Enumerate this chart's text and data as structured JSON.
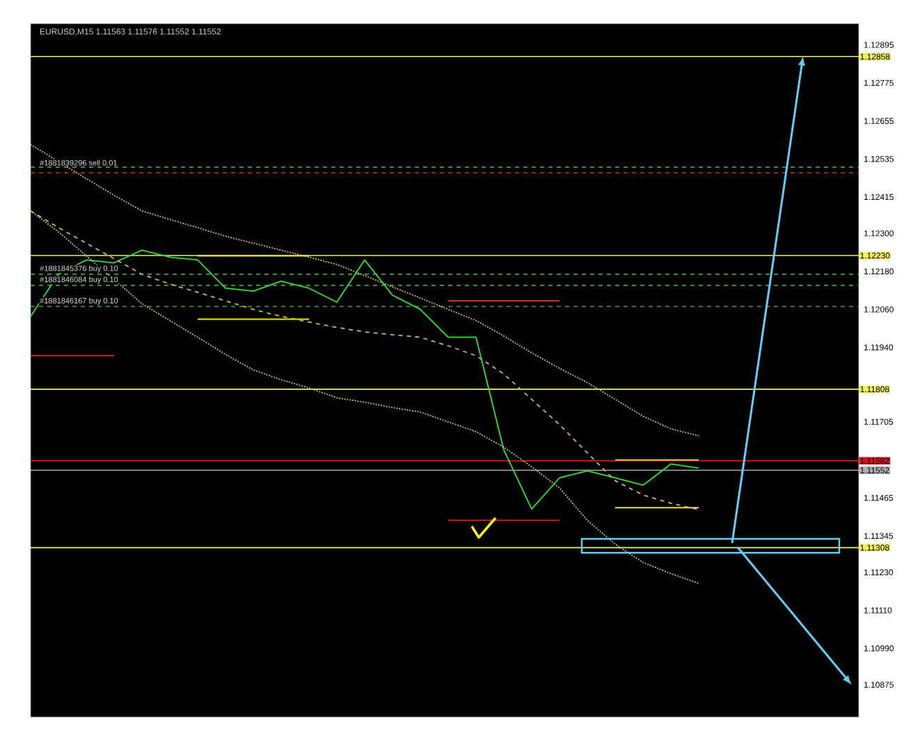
{
  "chart_data": {
    "type": "line",
    "title": "EURUSD,M15  1.11563 1.11576 1.11552 1.11552",
    "categories": [
      null,
      null,
      null,
      null,
      null,
      null,
      null,
      null,
      null,
      null,
      null,
      null,
      null,
      null,
      null,
      null,
      null,
      null,
      null,
      null,
      null,
      null,
      null,
      null,
      null,
      null,
      null,
      null,
      null,
      null
    ],
    "ylim": [
      1.10773,
      1.12962
    ],
    "yticks": [
      1.12895,
      1.12775,
      1.12655,
      1.12535,
      1.12415,
      {
        "value": 1.123,
        "label": "1.12300"
      },
      {
        "value": 1.1218,
        "label": "1.12180"
      },
      {
        "value": 1.1206,
        "label": "1.12060"
      },
      {
        "value": 1.1194,
        "label": "1.11940"
      },
      1.11705,
      1.11465,
      1.11345,
      {
        "value": 1.1123,
        "label": "1.11230"
      },
      {
        "value": 1.1111,
        "label": "1.11110"
      },
      {
        "value": 1.1099,
        "label": "1.10990"
      },
      1.10875
    ],
    "tick_labels": "y",
    "series": [
      {
        "color": "#33e033",
        "line_style": "solid",
        "values": [
          1.12038,
          1.12171,
          1.12216,
          1.12207,
          1.12247,
          1.12225,
          1.12216,
          1.12127,
          1.12118,
          1.12149,
          1.12127,
          1.12083,
          1.12216,
          1.12105,
          1.1206,
          1.11972,
          1.11972,
          1.11616,
          1.1143,
          1.11528,
          1.1155,
          1.11528,
          1.11505,
          1.11572,
          1.11559,
          null,
          null,
          null,
          null,
          null
        ]
      },
      {
        "color": "#d8d070",
        "line_style": "dotted",
        "values": [
          1.1258,
          1.12527,
          1.12473,
          1.1242,
          1.12371,
          1.12344,
          1.12318,
          1.12291,
          1.12269,
          1.12247,
          1.12225,
          1.12202,
          1.12167,
          1.12131,
          1.12096,
          1.1206,
          1.12025,
          1.11976,
          1.11923,
          1.11874,
          1.11829,
          1.11776,
          1.11723,
          1.11683,
          1.11661,
          null,
          null,
          null,
          null,
          null
        ]
      },
      {
        "color": "#d8d070",
        "line_style": "dotted",
        "values": [
          1.12371,
          1.12305,
          1.12229,
          1.12154,
          1.12078,
          1.12025,
          1.11972,
          1.11918,
          1.11869,
          1.11838,
          1.11812,
          1.11781,
          1.11767,
          1.1175,
          1.11736,
          1.11705,
          1.11674,
          1.11625,
          1.11563,
          1.11496,
          1.11394,
          1.11319,
          1.11261,
          1.11226,
          1.11195,
          null,
          null,
          null,
          null,
          null
        ]
      },
      {
        "color": "#c8b860",
        "line_style": "dashed",
        "values": [
          1.12371,
          1.12318,
          1.12269,
          1.1222,
          1.12171,
          1.1214,
          1.12114,
          1.12087,
          1.1206,
          1.12038,
          1.1202,
          1.12003,
          1.11989,
          1.1198,
          1.11972,
          1.11945,
          1.11914,
          1.11856,
          1.11776,
          1.11696,
          1.11607,
          1.11519,
          1.11474,
          1.11448,
          1.11428,
          null,
          null,
          null,
          null,
          null
        ]
      },
      {
        "color": "#e02020",
        "line_style": "solid",
        "values": [
          1.11914,
          1.11914,
          1.11914,
          1.11914,
          null,
          null,
          null,
          null,
          null,
          null,
          null,
          null,
          null,
          null,
          null,
          null,
          null,
          null,
          null,
          null,
          null,
          null,
          null,
          null,
          null,
          null,
          null,
          null,
          null,
          null
        ]
      },
      {
        "color": "#e04020",
        "line_style": "solid",
        "values": [
          null,
          null,
          null,
          null,
          null,
          null,
          null,
          null,
          null,
          null,
          null,
          null,
          null,
          null,
          null,
          1.12087,
          1.12087,
          1.12087,
          1.12087,
          1.12087,
          null,
          null,
          null,
          null,
          null,
          null,
          null,
          null,
          null,
          null
        ]
      },
      {
        "color": "#e02020",
        "line_style": "solid",
        "values": [
          null,
          null,
          null,
          null,
          null,
          null,
          null,
          null,
          null,
          null,
          null,
          null,
          null,
          null,
          null,
          1.11394,
          1.11394,
          1.11394,
          1.11394,
          1.11394,
          null,
          null,
          null,
          null,
          null,
          null,
          null,
          null,
          null,
          null
        ]
      },
      {
        "color": "#f0e020",
        "line_style": "solid",
        "values": [
          null,
          null,
          null,
          null,
          null,
          null,
          1.12229,
          1.12229,
          1.12229,
          1.12229,
          1.12229,
          null,
          null,
          null,
          null,
          null,
          null,
          null,
          null,
          null,
          null,
          null,
          null,
          null,
          null,
          null,
          null,
          null,
          null,
          null
        ]
      },
      {
        "color": "#f0e020",
        "line_style": "solid",
        "values": [
          null,
          null,
          null,
          null,
          null,
          null,
          1.12029,
          1.12029,
          1.12029,
          1.12029,
          1.12029,
          null,
          null,
          null,
          null,
          null,
          null,
          null,
          null,
          null,
          null,
          null,
          null,
          null,
          null,
          null,
          null,
          null,
          null,
          null
        ]
      },
      {
        "color": "#f0e020",
        "line_style": "solid",
        "values": [
          null,
          null,
          null,
          null,
          null,
          null,
          null,
          null,
          null,
          null,
          null,
          null,
          null,
          null,
          null,
          null,
          null,
          null,
          null,
          null,
          null,
          1.11585,
          1.11585,
          1.11585,
          1.11585,
          null,
          null,
          null,
          null,
          null
        ]
      },
      {
        "color": "#f0e020",
        "line_style": "solid",
        "values": [
          null,
          null,
          null,
          null,
          null,
          null,
          null,
          null,
          null,
          null,
          null,
          null,
          null,
          null,
          null,
          null,
          null,
          null,
          null,
          null,
          null,
          1.11434,
          1.11434,
          1.11434,
          1.11434,
          null,
          null,
          null,
          null,
          null
        ]
      }
    ],
    "ref_lines": [
      {
        "axis": "y",
        "value": 1.12858,
        "label": "1.12858",
        "color": "#f0f060",
        "line_style": "solid"
      },
      {
        "axis": "y",
        "value": 1.1223,
        "label": "1.12230",
        "color": "#f0f060",
        "line_style": "solid"
      },
      {
        "axis": "y",
        "value": 1.11808,
        "label": "1.11808",
        "color": "#f0f060",
        "line_style": "solid"
      },
      {
        "axis": "y",
        "value": 1.11582,
        "label": "1.11582",
        "color": "#d01818",
        "line_style": "solid"
      },
      {
        "axis": "y",
        "value": 1.11552,
        "label": "1.11552",
        "color": "#b0b0b0",
        "line_style": "solid"
      },
      {
        "axis": "y",
        "value": 1.11308,
        "label": "1.11308",
        "color": "#f0f060",
        "line_style": "solid"
      },
      {
        "axis": "y",
        "value": 1.12509,
        "color": "#40a040",
        "line_style": "dashed"
      },
      {
        "axis": "y",
        "value": 1.12491,
        "color": "#c03030",
        "line_style": "dashed"
      },
      {
        "axis": "y",
        "value": 1.12171,
        "color": "#40a040",
        "line_style": "dashed"
      },
      {
        "axis": "y",
        "value": 1.12136,
        "color": "#40a040",
        "line_style": "dashed"
      },
      {
        "axis": "y",
        "value": 1.12069,
        "color": "#40a040",
        "line_style": "dashed"
      }
    ],
    "annotations": [
      {
        "text": "#1881839296 sell 0.01",
        "y": 1.12509
      },
      {
        "text": "#1881845376 buy 0.10",
        "y": 1.12171
      },
      {
        "text": "#1881846084 buy 0.10",
        "y": 1.12136
      },
      {
        "text": "#1881846167 buy 0.10",
        "y": 1.12069
      }
    ]
  }
}
